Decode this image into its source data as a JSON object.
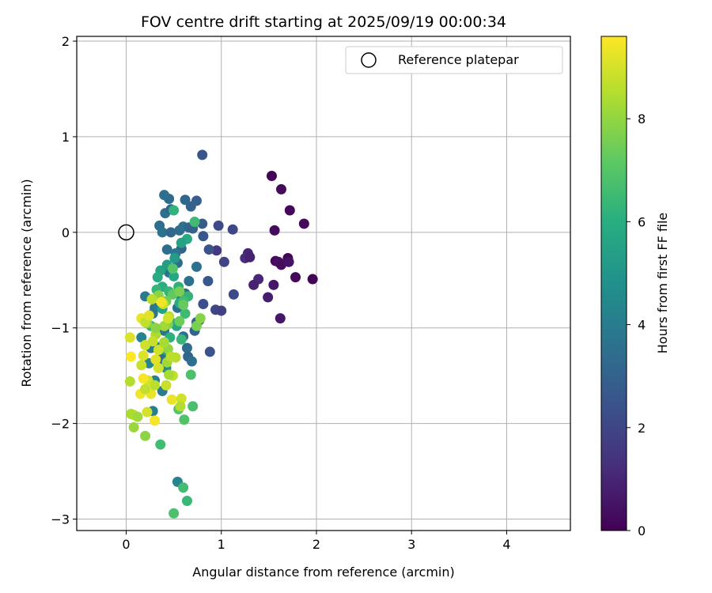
{
  "chart_data": {
    "type": "scatter",
    "title": "FOV centre drift starting at 2025/09/19 00:00:34",
    "xlabel": "Angular distance from reference (arcmin)",
    "ylabel": "Rotation from reference (arcmin)",
    "xlim": [
      -0.52,
      4.67
    ],
    "ylim": [
      -3.12,
      2.05
    ],
    "xticks": [
      0,
      1,
      2,
      3,
      4
    ],
    "yticks": [
      -3,
      -2,
      -1,
      0,
      1,
      2
    ],
    "grid": true,
    "legend": {
      "placement": "top-right",
      "entries": [
        {
          "label": "Reference platepar",
          "marker": "open-circle",
          "color": "#000000"
        }
      ]
    },
    "reference_point": {
      "x": 0,
      "y": 0
    },
    "colorbar": {
      "label": "Hours from first FF file",
      "colormap": "viridis",
      "range": [
        0,
        9.6
      ],
      "ticks": [
        0,
        2,
        4,
        6,
        8
      ]
    },
    "points": [
      {
        "x": 1.53,
        "y": 0.59,
        "t": 0.1
      },
      {
        "x": 1.63,
        "y": 0.45,
        "t": 0.3
      },
      {
        "x": 1.72,
        "y": 0.23,
        "t": 0.2
      },
      {
        "x": 1.87,
        "y": 0.09,
        "t": 0.2
      },
      {
        "x": 1.56,
        "y": 0.02,
        "t": 0.3
      },
      {
        "x": 1.57,
        "y": -0.3,
        "t": 0.2
      },
      {
        "x": 1.7,
        "y": -0.27,
        "t": 0.1
      },
      {
        "x": 1.6,
        "y": -0.31,
        "t": 0.4
      },
      {
        "x": 1.63,
        "y": -0.34,
        "t": 0.3
      },
      {
        "x": 1.71,
        "y": -0.31,
        "t": 0.5
      },
      {
        "x": 1.55,
        "y": -0.55,
        "t": 0.6
      },
      {
        "x": 1.78,
        "y": -0.47,
        "t": 0.2
      },
      {
        "x": 1.96,
        "y": -0.49,
        "t": 0.1
      },
      {
        "x": 1.49,
        "y": -0.68,
        "t": 0.8
      },
      {
        "x": 1.62,
        "y": -0.9,
        "t": 0.6
      },
      {
        "x": 1.28,
        "y": -0.22,
        "t": 1.0
      },
      {
        "x": 1.25,
        "y": -0.27,
        "t": 1.2
      },
      {
        "x": 1.3,
        "y": -0.26,
        "t": 0.9
      },
      {
        "x": 1.39,
        "y": -0.49,
        "t": 1.1
      },
      {
        "x": 1.34,
        "y": -0.55,
        "t": 0.9
      },
      {
        "x": 1.12,
        "y": 0.03,
        "t": 2.0
      },
      {
        "x": 0.97,
        "y": 0.07,
        "t": 2.2
      },
      {
        "x": 0.95,
        "y": -0.19,
        "t": 1.6
      },
      {
        "x": 1.03,
        "y": -0.31,
        "t": 1.9
      },
      {
        "x": 1.13,
        "y": -0.65,
        "t": 2.1
      },
      {
        "x": 0.94,
        "y": -0.81,
        "t": 2.0
      },
      {
        "x": 1.0,
        "y": -0.82,
        "t": 1.8
      },
      {
        "x": 0.8,
        "y": 0.81,
        "t": 2.5
      },
      {
        "x": 0.87,
        "y": -0.18,
        "t": 2.4
      },
      {
        "x": 0.86,
        "y": -0.51,
        "t": 2.6
      },
      {
        "x": 0.81,
        "y": -0.75,
        "t": 2.3
      },
      {
        "x": 0.88,
        "y": -1.25,
        "t": 2.4
      },
      {
        "x": 0.8,
        "y": 0.09,
        "t": 2.8
      },
      {
        "x": 0.81,
        "y": -0.04,
        "t": 2.6
      },
      {
        "x": 0.74,
        "y": 0.33,
        "t": 2.9
      },
      {
        "x": 0.68,
        "y": 0.27,
        "t": 3.0
      },
      {
        "x": 0.62,
        "y": 0.34,
        "t": 3.2
      },
      {
        "x": 0.45,
        "y": 0.35,
        "t": 3.3
      },
      {
        "x": 0.4,
        "y": 0.39,
        "t": 3.5
      },
      {
        "x": 0.41,
        "y": 0.2,
        "t": 3.6
      },
      {
        "x": 0.47,
        "y": 0.24,
        "t": 3.1
      },
      {
        "x": 0.35,
        "y": 0.07,
        "t": 3.4
      },
      {
        "x": 0.38,
        "y": 0.0,
        "t": 3.6
      },
      {
        "x": 0.47,
        "y": 0.0,
        "t": 3.2
      },
      {
        "x": 0.56,
        "y": 0.02,
        "t": 3.3
      },
      {
        "x": 0.6,
        "y": 0.06,
        "t": 3.6
      },
      {
        "x": 0.66,
        "y": 0.05,
        "t": 3.1
      },
      {
        "x": 0.7,
        "y": 0.04,
        "t": 3.0
      },
      {
        "x": 0.58,
        "y": -0.17,
        "t": 3.0
      },
      {
        "x": 0.43,
        "y": -0.18,
        "t": 3.4
      },
      {
        "x": 0.52,
        "y": -0.22,
        "t": 3.7
      },
      {
        "x": 0.54,
        "y": -0.32,
        "t": 3.3
      },
      {
        "x": 0.45,
        "y": -0.42,
        "t": 3.6
      },
      {
        "x": 0.66,
        "y": -0.51,
        "t": 3.5
      },
      {
        "x": 0.74,
        "y": -0.36,
        "t": 3.6
      },
      {
        "x": 0.62,
        "y": -0.64,
        "t": 3.2
      },
      {
        "x": 0.58,
        "y": -0.7,
        "t": 3.8
      },
      {
        "x": 0.54,
        "y": -0.79,
        "t": 3.5
      },
      {
        "x": 0.74,
        "y": -0.94,
        "t": 3.0
      },
      {
        "x": 0.77,
        "y": -0.92,
        "t": 3.3
      },
      {
        "x": 0.72,
        "y": -1.03,
        "t": 3.1
      },
      {
        "x": 0.6,
        "y": -1.09,
        "t": 3.6
      },
      {
        "x": 0.64,
        "y": -1.21,
        "t": 3.4
      },
      {
        "x": 0.65,
        "y": -1.3,
        "t": 3.2
      },
      {
        "x": 0.69,
        "y": -1.35,
        "t": 3.5
      },
      {
        "x": 0.41,
        "y": -1.27,
        "t": 3.8
      },
      {
        "x": 0.36,
        "y": -1.33,
        "t": 3.5
      },
      {
        "x": 0.4,
        "y": -1.03,
        "t": 3.7
      },
      {
        "x": 0.3,
        "y": -0.79,
        "t": 3.9
      },
      {
        "x": 0.28,
        "y": -0.85,
        "t": 3.8
      },
      {
        "x": 0.26,
        "y": -1.21,
        "t": 4.0
      },
      {
        "x": 0.2,
        "y": -0.67,
        "t": 3.9
      },
      {
        "x": 0.3,
        "y": -1.55,
        "t": 4.2
      },
      {
        "x": 0.38,
        "y": -1.66,
        "t": 4.0
      },
      {
        "x": 0.28,
        "y": -1.87,
        "t": 4.1
      },
      {
        "x": 0.54,
        "y": -2.61,
        "t": 4.3
      },
      {
        "x": 0.16,
        "y": -1.1,
        "t": 4.2
      },
      {
        "x": 0.24,
        "y": -1.37,
        "t": 4.4
      },
      {
        "x": 0.42,
        "y": -1.42,
        "t": 4.6
      },
      {
        "x": 0.35,
        "y": -1.2,
        "t": 4.3
      },
      {
        "x": 0.64,
        "y": -0.07,
        "t": 5.8
      },
      {
        "x": 0.58,
        "y": -0.11,
        "t": 5.5
      },
      {
        "x": 0.64,
        "y": -2.81,
        "t": 6.4
      },
      {
        "x": 0.6,
        "y": -2.67,
        "t": 6.6
      },
      {
        "x": 0.5,
        "y": -2.94,
        "t": 6.8
      },
      {
        "x": 0.36,
        "y": -2.22,
        "t": 6.6
      },
      {
        "x": 0.61,
        "y": -1.96,
        "t": 6.9
      },
      {
        "x": 0.7,
        "y": -1.82,
        "t": 6.7
      },
      {
        "x": 0.55,
        "y": -1.85,
        "t": 7.0
      },
      {
        "x": 0.36,
        "y": -0.4,
        "t": 5.6
      },
      {
        "x": 0.33,
        "y": -0.47,
        "t": 5.9
      },
      {
        "x": 0.43,
        "y": -0.34,
        "t": 5.3
      },
      {
        "x": 0.38,
        "y": -0.57,
        "t": 6.0
      },
      {
        "x": 0.45,
        "y": -0.62,
        "t": 6.3
      },
      {
        "x": 0.55,
        "y": -0.57,
        "t": 6.1
      },
      {
        "x": 0.5,
        "y": -0.46,
        "t": 5.7
      },
      {
        "x": 0.65,
        "y": -0.67,
        "t": 6.2
      },
      {
        "x": 0.62,
        "y": -0.85,
        "t": 6.5
      },
      {
        "x": 0.68,
        "y": -1.49,
        "t": 6.8
      },
      {
        "x": 0.47,
        "y": -0.94,
        "t": 6.0
      },
      {
        "x": 0.42,
        "y": -1.23,
        "t": 5.8
      },
      {
        "x": 0.51,
        "y": -0.27,
        "t": 5.2
      },
      {
        "x": 0.5,
        "y": 0.23,
        "t": 6.2
      },
      {
        "x": 0.72,
        "y": 0.11,
        "t": 6.5
      },
      {
        "x": 0.38,
        "y": -0.8,
        "t": 5.5
      },
      {
        "x": 0.56,
        "y": -0.74,
        "t": 5.9
      },
      {
        "x": 0.6,
        "y": -0.72,
        "t": 6.6
      },
      {
        "x": 0.32,
        "y": -0.6,
        "t": 6.3
      },
      {
        "x": 0.53,
        "y": -0.98,
        "t": 5.7
      },
      {
        "x": 0.46,
        "y": -1.1,
        "t": 6.1
      },
      {
        "x": 0.26,
        "y": -0.98,
        "t": 6.2
      },
      {
        "x": 0.58,
        "y": -1.12,
        "t": 6.4
      },
      {
        "x": 0.49,
        "y": -0.65,
        "t": 7.2
      },
      {
        "x": 0.42,
        "y": -0.72,
        "t": 7.5
      },
      {
        "x": 0.56,
        "y": -0.62,
        "t": 7.6
      },
      {
        "x": 0.6,
        "y": -0.76,
        "t": 7.3
      },
      {
        "x": 0.74,
        "y": -0.98,
        "t": 7.6
      },
      {
        "x": 0.78,
        "y": -0.9,
        "t": 7.8
      },
      {
        "x": 0.49,
        "y": -0.38,
        "t": 7.0
      },
      {
        "x": 0.56,
        "y": -0.93,
        "t": 7.4
      },
      {
        "x": 0.34,
        "y": -0.66,
        "t": 7.9
      },
      {
        "x": 0.44,
        "y": -0.96,
        "t": 7.7
      },
      {
        "x": 0.22,
        "y": -0.95,
        "t": 8.0
      },
      {
        "x": 0.27,
        "y": -0.7,
        "t": 8.6
      },
      {
        "x": 0.31,
        "y": -1.07,
        "t": 8.4
      },
      {
        "x": 0.39,
        "y": -0.75,
        "t": 8.8
      },
      {
        "x": 0.45,
        "y": -0.88,
        "t": 8.5
      },
      {
        "x": 0.4,
        "y": -0.98,
        "t": 8.2
      },
      {
        "x": 0.44,
        "y": -1.22,
        "t": 8.0
      },
      {
        "x": 0.52,
        "y": -1.31,
        "t": 8.6
      },
      {
        "x": 0.49,
        "y": -1.5,
        "t": 8.7
      },
      {
        "x": 0.45,
        "y": -1.49,
        "t": 8.3
      },
      {
        "x": 0.42,
        "y": -1.6,
        "t": 8.8
      },
      {
        "x": 0.48,
        "y": -1.75,
        "t": 9.3
      },
      {
        "x": 0.58,
        "y": -1.74,
        "t": 8.9
      },
      {
        "x": 0.57,
        "y": -1.82,
        "t": 8.5
      },
      {
        "x": 0.34,
        "y": -1.42,
        "t": 9.0
      },
      {
        "x": 0.31,
        "y": -1.33,
        "t": 9.2
      },
      {
        "x": 0.2,
        "y": -1.18,
        "t": 8.9
      },
      {
        "x": 0.18,
        "y": -1.29,
        "t": 9.1
      },
      {
        "x": 0.16,
        "y": -1.39,
        "t": 8.8
      },
      {
        "x": 0.23,
        "y": -1.55,
        "t": 9.0
      },
      {
        "x": 0.26,
        "y": -1.69,
        "t": 9.3
      },
      {
        "x": 0.18,
        "y": -1.53,
        "t": 9.5
      },
      {
        "x": 0.15,
        "y": -1.69,
        "t": 9.4
      },
      {
        "x": 0.2,
        "y": -1.64,
        "t": 8.7
      },
      {
        "x": 0.3,
        "y": -1.6,
        "t": 8.6
      },
      {
        "x": 0.22,
        "y": -1.88,
        "t": 9.0
      },
      {
        "x": 0.08,
        "y": -1.91,
        "t": 8.8
      },
      {
        "x": 0.05,
        "y": -1.9,
        "t": 8.4
      },
      {
        "x": 0.12,
        "y": -1.93,
        "t": 8.2
      },
      {
        "x": 0.08,
        "y": -2.04,
        "t": 8.1
      },
      {
        "x": 0.2,
        "y": -2.13,
        "t": 7.9
      },
      {
        "x": 0.3,
        "y": -1.97,
        "t": 9.5
      },
      {
        "x": 0.04,
        "y": -1.56,
        "t": 8.5
      },
      {
        "x": 0.05,
        "y": -1.3,
        "t": 9.6
      },
      {
        "x": 0.04,
        "y": -1.1,
        "t": 9.1
      },
      {
        "x": 0.16,
        "y": -0.9,
        "t": 9.3
      },
      {
        "x": 0.2,
        "y": -0.94,
        "t": 8.7
      },
      {
        "x": 0.24,
        "y": -0.87,
        "t": 9.2
      },
      {
        "x": 0.28,
        "y": -1.14,
        "t": 8.8
      },
      {
        "x": 0.34,
        "y": -1.23,
        "t": 8.9
      },
      {
        "x": 0.4,
        "y": -1.15,
        "t": 8.3
      },
      {
        "x": 0.43,
        "y": -1.36,
        "t": 8.2
      },
      {
        "x": 0.47,
        "y": -1.3,
        "t": 8.6
      },
      {
        "x": 0.31,
        "y": -1.0,
        "t": 7.9
      },
      {
        "x": 0.37,
        "y": -0.73,
        "t": 9.4
      },
      {
        "x": 0.44,
        "y": -0.9,
        "t": 8.9
      }
    ]
  }
}
